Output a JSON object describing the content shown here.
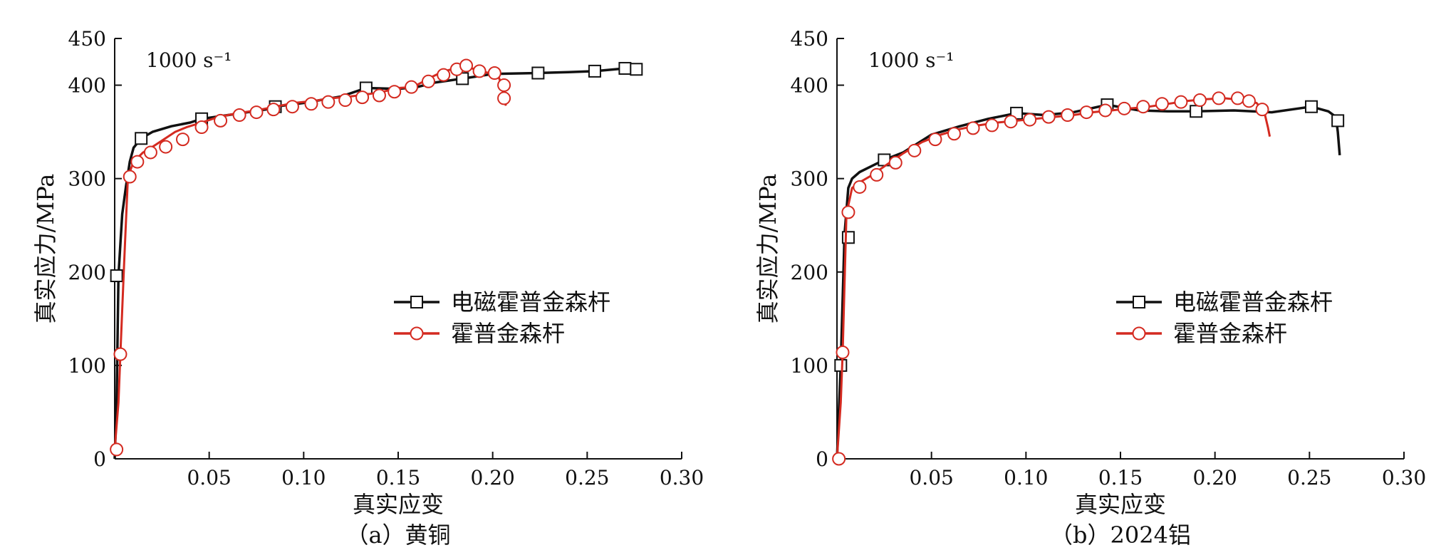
{
  "chart_data": [
    {
      "id": "a",
      "type": "line",
      "caption": "（a）黄铜",
      "rate_label": "1000 s⁻¹",
      "xlabel": "真实应变",
      "ylabel": "真实应力/MPa",
      "xlim": [
        0,
        0.3
      ],
      "ylim": [
        0,
        450
      ],
      "xticks": [
        0.05,
        0.1,
        0.15,
        0.2,
        0.25,
        0.3
      ],
      "xtick_labels": [
        "0.05",
        "0.10",
        "0.15",
        "0.20",
        "0.25",
        "0.30"
      ],
      "yticks": [
        0,
        100,
        200,
        300,
        400,
        450
      ],
      "ytick_labels": [
        "0",
        "100",
        "200",
        "300",
        "400",
        "450"
      ],
      "grid": false,
      "legend_position": "center-right",
      "series": [
        {
          "name": "电磁霍普金森杆",
          "color": "#111111",
          "marker": "square",
          "x": [
            0.0,
            0.001,
            0.002,
            0.003,
            0.004,
            0.006,
            0.008,
            0.01,
            0.014,
            0.02,
            0.03,
            0.04,
            0.046,
            0.06,
            0.08,
            0.085,
            0.1,
            0.12,
            0.133,
            0.15,
            0.16,
            0.17,
            0.184,
            0.2,
            0.224,
            0.24,
            0.254,
            0.27,
            0.276
          ],
          "y": [
            0,
            60,
            196,
            230,
            262,
            292,
            318,
            333,
            343,
            350,
            356,
            360,
            364,
            368,
            374,
            377,
            381,
            388,
            397,
            396,
            398,
            403,
            407,
            412,
            413,
            414,
            415,
            418,
            417
          ],
          "marker_x": [
            0.001,
            0.014,
            0.046,
            0.085,
            0.133,
            0.184,
            0.224,
            0.254,
            0.27,
            0.276
          ],
          "marker_y": [
            196,
            343,
            364,
            377,
            397,
            407,
            413,
            415,
            418,
            417
          ]
        },
        {
          "name": "霍普金森杆",
          "color": "#d42a20",
          "marker": "circle",
          "x": [
            0.0,
            0.002,
            0.003,
            0.005,
            0.007,
            0.01,
            0.015,
            0.02,
            0.026,
            0.032,
            0.038,
            0.046,
            0.055,
            0.065,
            0.075,
            0.085,
            0.095,
            0.105,
            0.115,
            0.125,
            0.133,
            0.142,
            0.15,
            0.158,
            0.166,
            0.173,
            0.18,
            0.186,
            0.192,
            0.198,
            0.203,
            0.205,
            0.206,
            0.207
          ],
          "y": [
            10,
            60,
            112,
            210,
            302,
            318,
            328,
            334,
            342,
            350,
            355,
            360,
            366,
            370,
            373,
            377,
            381,
            383,
            386,
            388,
            390,
            393,
            397,
            398,
            407,
            414,
            418,
            420,
            416,
            413,
            410,
            398,
            386,
            378
          ],
          "marker_x": [
            0.001,
            0.003,
            0.008,
            0.012,
            0.019,
            0.027,
            0.036,
            0.046,
            0.056,
            0.066,
            0.075,
            0.084,
            0.094,
            0.104,
            0.113,
            0.122,
            0.131,
            0.14,
            0.148,
            0.157,
            0.166,
            0.174,
            0.181,
            0.186,
            0.193,
            0.201,
            0.206,
            0.206
          ],
          "marker_y": [
            10,
            112,
            302,
            318,
            328,
            334,
            342,
            355,
            362,
            368,
            371,
            374,
            377,
            380,
            382,
            384,
            387,
            389,
            393,
            398,
            404,
            411,
            417,
            421,
            415,
            413,
            400,
            386
          ]
        }
      ]
    },
    {
      "id": "b",
      "type": "line",
      "caption": "（b）2024铝",
      "rate_label": "1000 s⁻¹",
      "xlabel": "真实应变",
      "ylabel": "真实应力/MPa",
      "xlim": [
        0,
        0.3
      ],
      "ylim": [
        0,
        450
      ],
      "xticks": [
        0.05,
        0.1,
        0.15,
        0.2,
        0.25,
        0.3
      ],
      "xtick_labels": [
        "0.05",
        "0.10",
        "0.15",
        "0.20",
        "0.25",
        "0.30"
      ],
      "yticks": [
        0,
        100,
        200,
        300,
        400,
        450
      ],
      "ytick_labels": [
        "0",
        "100",
        "200",
        "300",
        "400",
        "450"
      ],
      "grid": false,
      "legend_position": "center-right",
      "series": [
        {
          "name": "电磁霍普金森杆",
          "color": "#111111",
          "marker": "square",
          "x": [
            0.0,
            0.002,
            0.004,
            0.006,
            0.008,
            0.012,
            0.018,
            0.025,
            0.035,
            0.05,
            0.065,
            0.08,
            0.095,
            0.11,
            0.125,
            0.143,
            0.16,
            0.175,
            0.19,
            0.21,
            0.23,
            0.251,
            0.26,
            0.264,
            0.265,
            0.266
          ],
          "y": [
            0,
            100,
            240,
            290,
            300,
            307,
            313,
            320,
            328,
            347,
            356,
            364,
            370,
            368,
            371,
            379,
            373,
            372,
            372,
            373,
            371,
            377,
            372,
            366,
            350,
            325
          ],
          "marker_x": [
            0.002,
            0.006,
            0.025,
            0.095,
            0.143,
            0.19,
            0.251,
            0.265
          ],
          "marker_y": [
            100,
            237,
            320,
            370,
            379,
            372,
            377,
            362
          ]
        },
        {
          "name": "霍普金森杆",
          "color": "#d42a20",
          "marker": "circle",
          "x": [
            0.0,
            0.002,
            0.003,
            0.005,
            0.008,
            0.012,
            0.018,
            0.025,
            0.035,
            0.045,
            0.055,
            0.065,
            0.075,
            0.085,
            0.095,
            0.105,
            0.115,
            0.125,
            0.135,
            0.145,
            0.155,
            0.165,
            0.175,
            0.185,
            0.195,
            0.205,
            0.215,
            0.222,
            0.226,
            0.228,
            0.229
          ],
          "y": [
            0,
            60,
            114,
            262,
            290,
            296,
            303,
            313,
            327,
            339,
            347,
            353,
            357,
            360,
            362,
            364,
            366,
            368,
            371,
            373,
            375,
            377,
            380,
            383,
            385,
            386,
            384,
            381,
            372,
            355,
            345
          ],
          "marker_x": [
            0.001,
            0.003,
            0.006,
            0.012,
            0.021,
            0.031,
            0.041,
            0.052,
            0.062,
            0.072,
            0.082,
            0.092,
            0.102,
            0.112,
            0.122,
            0.132,
            0.142,
            0.152,
            0.162,
            0.172,
            0.182,
            0.192,
            0.202,
            0.212,
            0.218,
            0.225
          ],
          "marker_y": [
            0,
            114,
            264,
            291,
            304,
            317,
            330,
            342,
            348,
            354,
            357,
            361,
            363,
            366,
            368,
            371,
            373,
            375,
            377,
            380,
            382,
            384,
            386,
            386,
            383,
            374
          ]
        }
      ]
    }
  ]
}
